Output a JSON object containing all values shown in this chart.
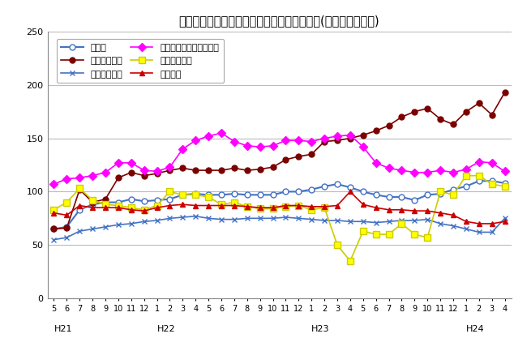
{
  "title": "三重県鉱工業生産及び主要業種別指数の推移(季節調整済指数)",
  "ylim": [
    0,
    250
  ],
  "yticks": [
    0,
    50,
    100,
    150,
    200,
    250
  ],
  "x_labels": [
    "5",
    "6",
    "7",
    "8",
    "9",
    "10",
    "11",
    "12",
    "1",
    "2",
    "3",
    "4",
    "5",
    "6",
    "7",
    "8",
    "9",
    "10",
    "11",
    "12",
    "1",
    "2",
    "3",
    "4",
    "5",
    "6",
    "7",
    "8",
    "9",
    "10",
    "11",
    "12",
    "1",
    "2",
    "3",
    "4"
  ],
  "year_labels": [
    [
      "H21",
      0
    ],
    [
      "H22",
      8
    ],
    [
      "H23",
      20
    ],
    [
      "H24",
      32
    ]
  ],
  "series_order": [
    "鉱工業",
    "一般機械工業",
    "電気機械工業",
    "電子部品・デバイス工業",
    "輸送機械工業",
    "化学工業"
  ],
  "legend_order": [
    0,
    1,
    2,
    3,
    4,
    5
  ],
  "series": {
    "鉱工業": {
      "color": "#4472C4",
      "marker": "o",
      "markerfacecolor": "white",
      "markeredgecolor": "#4472C4",
      "linewidth": 1.5,
      "markersize": 5,
      "values": [
        65,
        67,
        83,
        88,
        90,
        90,
        93,
        91,
        92,
        93,
        97,
        98,
        97,
        97,
        98,
        97,
        97,
        97,
        100,
        100,
        102,
        105,
        107,
        104,
        100,
        97,
        95,
        95,
        92,
        97,
        98,
        102,
        105,
        110,
        110,
        108
      ]
    },
    "一般機械工業": {
      "color": "#7B0000",
      "marker": "o",
      "markerfacecolor": "#7B0000",
      "markeredgecolor": "#7B0000",
      "linewidth": 1.2,
      "markersize": 5,
      "values": [
        65,
        66,
        102,
        90,
        93,
        113,
        118,
        115,
        117,
        120,
        122,
        120,
        120,
        120,
        122,
        120,
        121,
        123,
        130,
        133,
        135,
        147,
        148,
        150,
        153,
        157,
        162,
        170,
        175,
        178,
        168,
        163,
        175,
        183,
        172,
        193
      ]
    },
    "電気機械工業": {
      "color": "#4472C4",
      "marker": "x",
      "markerfacecolor": "#4472C4",
      "markeredgecolor": "#4472C4",
      "linewidth": 1.2,
      "markersize": 5,
      "values": [
        55,
        57,
        63,
        65,
        67,
        69,
        70,
        72,
        73,
        75,
        76,
        77,
        75,
        74,
        74,
        75,
        75,
        75,
        76,
        75,
        74,
        73,
        73,
        72,
        72,
        71,
        72,
        73,
        73,
        74,
        70,
        68,
        65,
        62,
        62,
        75
      ]
    },
    "電子部品・デバイス工業": {
      "color": "#FF00FF",
      "marker": "D",
      "markerfacecolor": "#FF00FF",
      "markeredgecolor": "#FF00FF",
      "linewidth": 1.2,
      "markersize": 5,
      "values": [
        107,
        112,
        113,
        115,
        118,
        127,
        127,
        120,
        119,
        123,
        140,
        148,
        152,
        155,
        147,
        143,
        142,
        143,
        148,
        148,
        147,
        150,
        152,
        153,
        142,
        127,
        122,
        120,
        118,
        118,
        120,
        118,
        121,
        128,
        127,
        119
      ]
    },
    "輸送機械工業": {
      "color": "#CCCC00",
      "marker": "s",
      "markerfacecolor": "#FFFF00",
      "markeredgecolor": "#CCCC00",
      "linewidth": 1.2,
      "markersize": 6,
      "values": [
        83,
        90,
        103,
        92,
        88,
        87,
        85,
        83,
        87,
        100,
        97,
        97,
        95,
        88,
        90,
        86,
        84,
        84,
        86,
        87,
        83,
        85,
        50,
        35,
        63,
        60,
        60,
        70,
        60,
        57,
        100,
        97,
        115,
        115,
        107,
        105
      ]
    },
    "化学工業": {
      "color": "#CC0000",
      "marker": "^",
      "markerfacecolor": "#CC0000",
      "markeredgecolor": "#CC0000",
      "linewidth": 1.2,
      "markersize": 5,
      "values": [
        80,
        78,
        87,
        85,
        85,
        85,
        83,
        82,
        85,
        87,
        88,
        87,
        87,
        87,
        87,
        86,
        85,
        85,
        87,
        87,
        86,
        86,
        87,
        100,
        88,
        85,
        83,
        83,
        82,
        82,
        80,
        78,
        72,
        70,
        70,
        72
      ]
    }
  },
  "background_color": "#FFFFFF",
  "grid_color": "#BBBBBB",
  "title_fontsize": 10.5
}
